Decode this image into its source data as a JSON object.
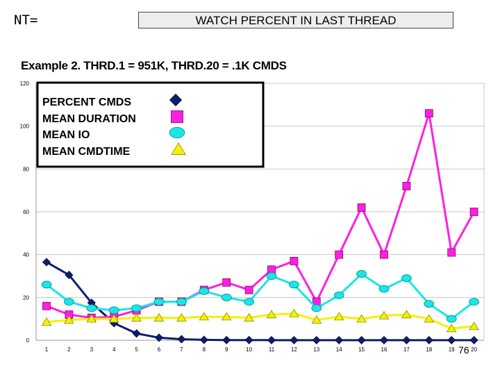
{
  "header": {
    "corner_label": "NT=",
    "title": "WATCH PERCENT IN LAST THREAD"
  },
  "subtitle": "Example 2.   THRD.1 = 951K, THRD.20 = .1K CMDS",
  "page_number": "76",
  "colors": {
    "percent_cmds": "#0d1e6e",
    "mean_duration": "#ff1fe0",
    "mean_io": "#19e6e6",
    "mean_cmdtime": "#f2f200"
  },
  "chart_data": {
    "type": "line",
    "x": [
      1,
      2,
      3,
      4,
      5,
      6,
      7,
      8,
      9,
      10,
      11,
      12,
      13,
      14,
      15,
      16,
      17,
      18,
      19,
      20
    ],
    "ylim": [
      0,
      120
    ],
    "yticks": [
      0,
      20,
      40,
      60,
      80,
      100,
      120
    ],
    "grid": true,
    "legend_position": "top-left",
    "series": [
      {
        "name": "PERCENT CMDS",
        "marker": "diamond",
        "color": "#0d1e6e",
        "values": [
          36.5,
          30.5,
          17.5,
          8,
          3.2,
          1.2,
          0.5,
          0.2,
          0.1,
          0.1,
          0.05,
          0.05,
          0.05,
          0.05,
          0.05,
          0.05,
          0.05,
          0.05,
          0.05,
          0.05
        ]
      },
      {
        "name": "MEAN DURATION",
        "marker": "square",
        "color": "#ff1fe0",
        "values": [
          16,
          12,
          10.5,
          11,
          14,
          18,
          18,
          23.5,
          27,
          23.5,
          33,
          37,
          18,
          40,
          62,
          40,
          72,
          106,
          41,
          60
        ]
      },
      {
        "name": "MEAN IO",
        "marker": "circle",
        "color": "#19e6e6",
        "values": [
          26,
          18,
          15,
          14,
          15,
          18,
          18,
          23,
          20,
          18,
          30,
          26,
          15,
          21,
          31,
          24,
          29,
          17,
          10,
          18
        ]
      },
      {
        "name": "MEAN CMDTIME",
        "marker": "triangle",
        "color": "#f2f200",
        "values": [
          8.5,
          9.5,
          10,
          10,
          10.5,
          10.5,
          10.5,
          11,
          11,
          10.5,
          12,
          12.5,
          9.5,
          11,
          10,
          11.5,
          12,
          10,
          5.5,
          6.5
        ]
      }
    ]
  }
}
